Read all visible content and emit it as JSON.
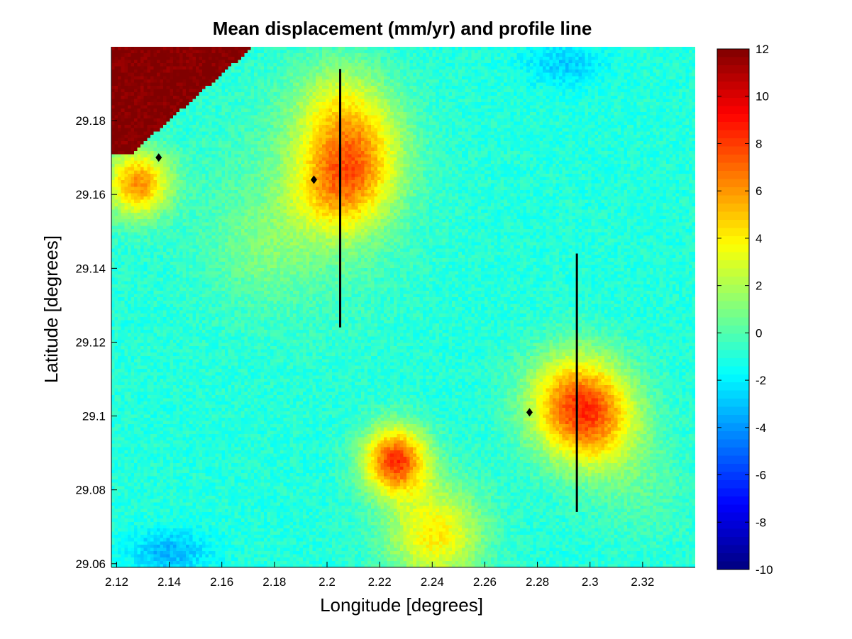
{
  "chart_data": {
    "type": "heatmap",
    "title": "Mean displacement (mm/yr) and profile line",
    "xlabel": "Longitude [degrees]",
    "ylabel": "Latitude [degrees]",
    "xlim": [
      2.118,
      2.34
    ],
    "ylim": [
      29.059,
      29.2
    ],
    "x_ticks": [
      "2.12",
      "2.14",
      "2.16",
      "2.18",
      "2.2",
      "2.22",
      "2.24",
      "2.26",
      "2.28",
      "2.3",
      "2.32"
    ],
    "y_ticks": [
      "29.06",
      "29.08",
      "29.1",
      "29.12",
      "29.14",
      "29.16",
      "29.18"
    ],
    "colorbar": {
      "colormap": "jet",
      "clim": [
        -10,
        12
      ],
      "ticks": [
        "-10",
        "-8",
        "-6",
        "-4",
        "-2",
        "0",
        "2",
        "4",
        "6",
        "8",
        "10",
        "12"
      ]
    },
    "background_value": -1,
    "hotspots": [
      {
        "lon": 2.205,
        "lat": 29.183,
        "value": 3.5
      },
      {
        "lon": 2.213,
        "lat": 29.172,
        "value": 3.0
      },
      {
        "lon": 2.205,
        "lat": 29.162,
        "value": 5.5
      },
      {
        "lon": 2.294,
        "lat": 29.104,
        "value": 6.0
      },
      {
        "lon": 2.302,
        "lat": 29.098,
        "value": 4.5
      },
      {
        "lon": 2.226,
        "lat": 29.088,
        "value": 9.0
      },
      {
        "lon": 2.241,
        "lat": 29.068,
        "value": 5.0
      },
      {
        "lon": 2.128,
        "lat": 29.163,
        "value": 7.0
      },
      {
        "lon": 2.175,
        "lat": 29.145,
        "value": 1.0
      },
      {
        "lon": 2.32,
        "lat": 29.08,
        "value": 1.0
      }
    ],
    "saturated_region_value": 12,
    "low_regions": [
      {
        "lon": 2.29,
        "lat": 29.195,
        "value": -3
      },
      {
        "lon": 2.14,
        "lat": 29.063,
        "value": -4
      }
    ],
    "profile_lines": [
      {
        "x": [
          2.205,
          2.205
        ],
        "y": [
          29.124,
          29.194
        ]
      },
      {
        "x": [
          2.295,
          2.295
        ],
        "y": [
          29.074,
          29.144
        ]
      }
    ],
    "markers": [
      {
        "x": 2.136,
        "y": 29.17
      },
      {
        "x": 2.195,
        "y": 29.164
      },
      {
        "x": 2.277,
        "y": 29.101
      }
    ]
  }
}
